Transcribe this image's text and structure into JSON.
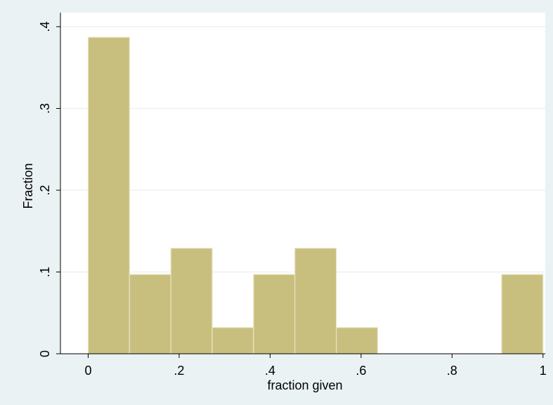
{
  "chart_data": {
    "type": "bar",
    "title": "",
    "xlabel": "fraction given",
    "ylabel": "Fraction",
    "xlim": [
      -0.061,
      1.005
    ],
    "ylim": [
      0,
      0.4
    ],
    "grid": true,
    "x_ticks": [
      0,
      0.2,
      0.4,
      0.6,
      0.8,
      1
    ],
    "x_tick_labels": [
      "0",
      ".2",
      ".4",
      ".6",
      ".8",
      "1"
    ],
    "y_ticks": [
      0,
      0.1,
      0.2,
      0.3,
      0.4
    ],
    "y_tick_labels": [
      "0",
      ".1",
      ".2",
      ".3",
      ".4"
    ],
    "bins": [
      {
        "x0": 0.0,
        "x1": 0.0909,
        "value": 0.387
      },
      {
        "x0": 0.0909,
        "x1": 0.1818,
        "value": 0.097
      },
      {
        "x0": 0.1818,
        "x1": 0.2727,
        "value": 0.129
      },
      {
        "x0": 0.2727,
        "x1": 0.3636,
        "value": 0.032
      },
      {
        "x0": 0.3636,
        "x1": 0.4545,
        "value": 0.097
      },
      {
        "x0": 0.4545,
        "x1": 0.5455,
        "value": 0.129
      },
      {
        "x0": 0.5455,
        "x1": 0.6364,
        "value": 0.032
      },
      {
        "x0": 0.9091,
        "x1": 1.0,
        "value": 0.097
      }
    ],
    "colors": {
      "bar_fill": "#c8bf7f",
      "bar_stroke": "#e8e4c4",
      "background": "#eaf2f3",
      "plot_background": "#ffffff",
      "grid": "#eaf2f3",
      "axis": "#000000"
    }
  }
}
